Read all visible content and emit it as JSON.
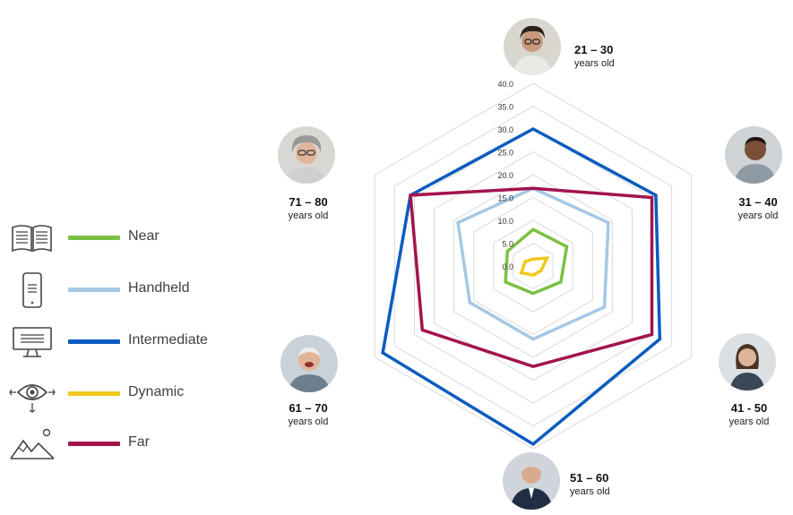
{
  "chart_data": {
    "type": "radar",
    "categories": [
      "21 – 30",
      "31 – 40",
      "41 - 50",
      "51 – 60",
      "61 – 70",
      "71 – 80"
    ],
    "category_sublabel": "years old",
    "rlim": [
      0,
      40
    ],
    "ticks": [
      "0.0",
      "5.0",
      "10.0",
      "15.0",
      "20.0",
      "25.0",
      "30.0",
      "35.0",
      "40.0"
    ],
    "tick_values": [
      0,
      5,
      10,
      15,
      20,
      25,
      30,
      35,
      40
    ],
    "grid": true,
    "legend_position": "left",
    "series": [
      {
        "name": "Near",
        "color": "#7ac143",
        "values": [
          8,
          8.5,
          7,
          6,
          7,
          6.5
        ]
      },
      {
        "name": "Handheld",
        "color": "#a5c8e4",
        "values": [
          17,
          19,
          18,
          16,
          16,
          19
        ]
      },
      {
        "name": "Intermediate",
        "color": "#0b5cbf",
        "values": [
          30,
          31,
          32,
          39,
          38,
          31
        ]
      },
      {
        "name": "Dynamic",
        "color": "#f2c81d",
        "values": [
          1.5,
          3.5,
          2,
          2,
          3,
          2
        ]
      },
      {
        "name": "Far",
        "color": "#a3144e",
        "values": [
          17,
          30,
          30,
          22,
          28,
          31
        ]
      }
    ]
  },
  "legend": [
    {
      "label": "Near",
      "icon": "book-icon",
      "color": "#7ac143"
    },
    {
      "label": "Handheld",
      "icon": "phone-icon",
      "color": "#a5c8e4"
    },
    {
      "label": "Intermediate",
      "icon": "monitor-icon",
      "color": "#0b5cbf"
    },
    {
      "label": "Dynamic",
      "icon": "eye-icon",
      "color": "#f2c81d"
    },
    {
      "label": "Far",
      "icon": "mountain-icon",
      "color": "#a3144e"
    }
  ],
  "ages": [
    {
      "range": "21 – 30",
      "sub": "years old"
    },
    {
      "range": "31 – 40",
      "sub": "years old"
    },
    {
      "range": "41 - 50",
      "sub": "years old"
    },
    {
      "range": "51 – 60",
      "sub": "years old"
    },
    {
      "range": "61 – 70",
      "sub": "years old"
    },
    {
      "range": "71 – 80",
      "sub": "years old"
    }
  ],
  "avatars": [
    "person-avatar-21-30",
    "person-avatar-31-40",
    "person-avatar-41-50",
    "person-avatar-51-60",
    "person-avatar-61-70",
    "person-avatar-71-80"
  ]
}
